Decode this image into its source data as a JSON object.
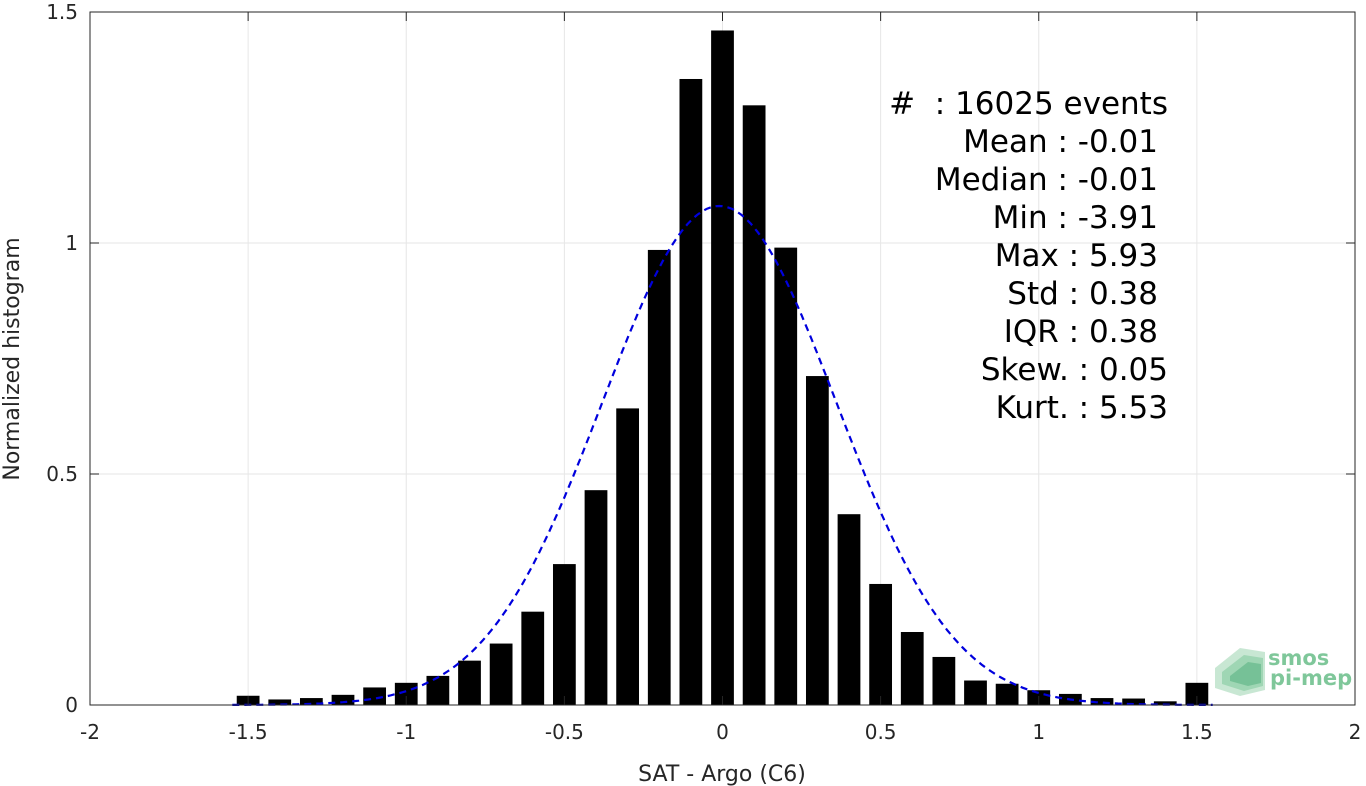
{
  "chart_data": {
    "type": "bar",
    "xlabel": "SAT - Argo (C6)",
    "ylabel": "Normalized histogram",
    "xlim": [
      -2,
      2
    ],
    "ylim": [
      0,
      1.5
    ],
    "xticks": [
      -2,
      -1.5,
      -1,
      -0.5,
      0,
      0.5,
      1,
      1.5,
      2
    ],
    "xtick_labels": [
      "-2",
      "-1.5",
      "-1",
      "-0.5",
      "0",
      "0.5",
      "1",
      "1.5",
      "2"
    ],
    "yticks": [
      0,
      0.5,
      1,
      1.5
    ],
    "ytick_labels": [
      "0",
      "0.5",
      "1",
      "1.5"
    ],
    "grid": true,
    "bar_color": "#000000",
    "bins": [
      -1.5,
      -1.4,
      -1.3,
      -1.2,
      -1.1,
      -1.0,
      -0.9,
      -0.8,
      -0.7,
      -0.6,
      -0.5,
      -0.4,
      -0.3,
      -0.2,
      -0.1,
      0.0,
      0.1,
      0.2,
      0.3,
      0.4,
      0.5,
      0.6,
      0.7,
      0.8,
      0.9,
      1.0,
      1.1,
      1.2,
      1.3,
      1.4,
      1.5
    ],
    "values": [
      0.02,
      0.012,
      0.015,
      0.022,
      0.038,
      0.048,
      0.063,
      0.096,
      0.133,
      0.202,
      0.305,
      0.465,
      0.642,
      0.985,
      1.355,
      1.46,
      1.298,
      0.99,
      0.712,
      0.413,
      0.262,
      0.158,
      0.104,
      0.053,
      0.046,
      0.032,
      0.024,
      0.015,
      0.014,
      0.008,
      0.048
    ],
    "fit_curve": {
      "style": "dashed",
      "color": "#0000dd",
      "mean": -0.01,
      "std": 0.37,
      "peak": 1.08
    },
    "annotations": [
      {
        "label": "#",
        "sep": ":",
        "value": "16025 events"
      },
      {
        "label": "Mean",
        "sep": ":",
        "value": "-0.01"
      },
      {
        "label": "Median",
        "sep": ":",
        "value": "-0.01"
      },
      {
        "label": "Min",
        "sep": ":",
        "value": "-3.91"
      },
      {
        "label": "Max",
        "sep": ":",
        "value": "5.93"
      },
      {
        "label": "Std",
        "sep": ":",
        "value": "0.38"
      },
      {
        "label": "IQR",
        "sep": ":",
        "value": "0.38"
      },
      {
        "label": "Skew.",
        "sep": ":",
        "value": "0.05"
      },
      {
        "label": "Kurt.",
        "sep": ":",
        "value": "5.53"
      }
    ],
    "logo": {
      "line1": "smos",
      "line2": "pi-mep"
    }
  }
}
